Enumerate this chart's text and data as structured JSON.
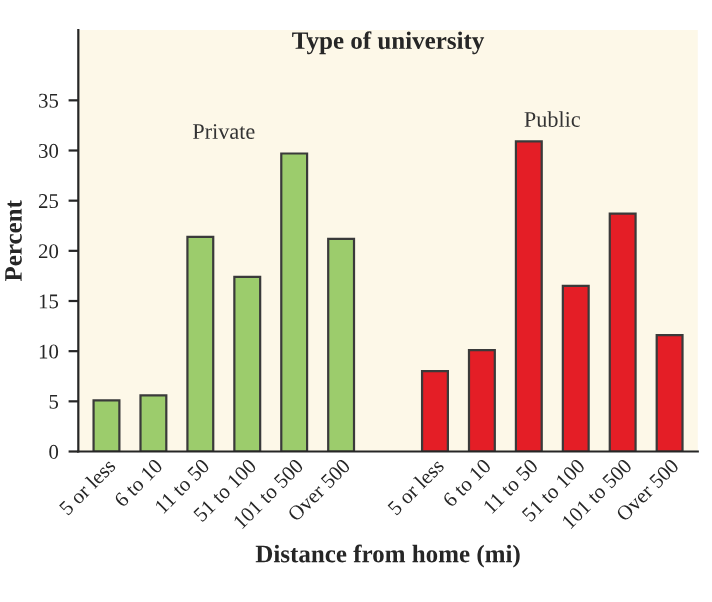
{
  "chart_data": {
    "type": "bar",
    "legend_title": "Type of university",
    "xlabel": "Distance from home (mi)",
    "ylabel": "Percent",
    "categories": [
      "5 or less",
      "6 to 10",
      "11 to 50",
      "51 to 100",
      "101 to 500",
      "Over 500",
      null,
      "5 or less",
      "6 to 10",
      "11 to 50",
      "51 to 100",
      "101 to 500",
      "Over 500"
    ],
    "series": [
      {
        "name": "Private",
        "color": "#9ccc6c",
        "values": [
          5.1,
          5.6,
          21.4,
          17.4,
          29.7,
          21.2,
          null,
          null,
          null,
          null,
          null,
          null,
          null
        ]
      },
      {
        "name": "Public",
        "color": "#e41e26",
        "values": [
          null,
          null,
          null,
          null,
          null,
          null,
          null,
          8.0,
          10.1,
          30.9,
          16.5,
          23.7,
          11.6
        ]
      }
    ],
    "ylim": [
      0,
      42
    ],
    "yticks": [
      0,
      5,
      10,
      15,
      20,
      25,
      30,
      35
    ],
    "grid": false,
    "legend": false
  }
}
